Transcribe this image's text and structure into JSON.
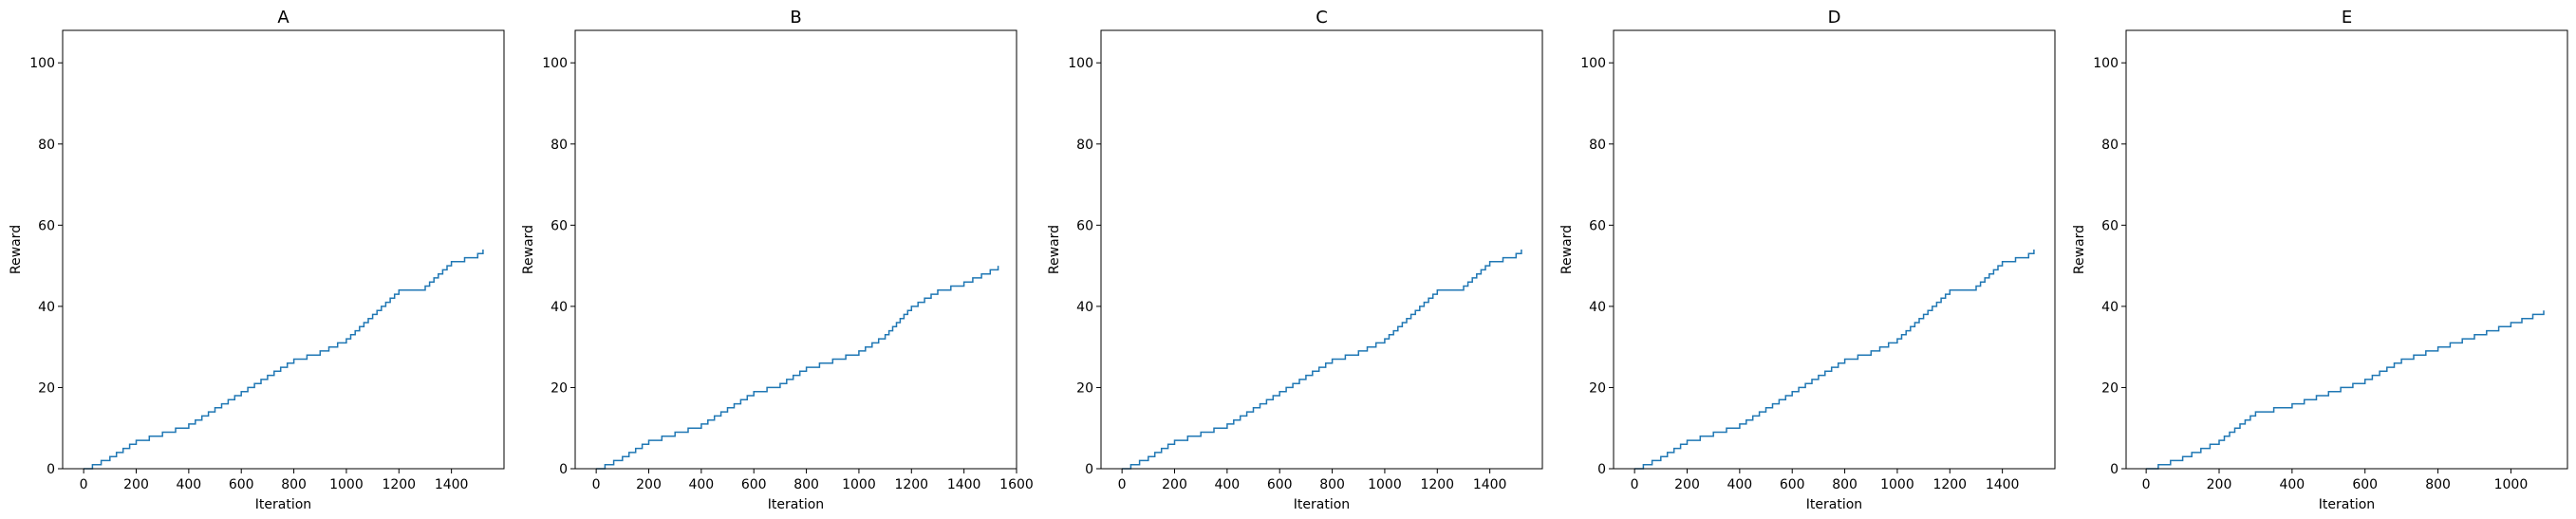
{
  "chart_data": [
    {
      "type": "line",
      "title": "A",
      "xlabel": "Iteration",
      "ylabel": "Reward",
      "xlim": [
        -80,
        1600
      ],
      "ylim": [
        0,
        108
      ],
      "xticks": [
        0,
        200,
        400,
        600,
        800,
        1000,
        1200,
        1400
      ],
      "yticks": [
        0,
        20,
        40,
        60,
        80,
        100
      ],
      "grid": false,
      "series": [
        {
          "x": [
            0,
            100,
            200,
            300,
            400,
            500,
            600,
            700,
            800,
            900,
            1000,
            1100,
            1200,
            1300,
            1400,
            1500,
            1520
          ],
          "y": [
            0,
            3,
            7,
            9,
            11,
            15,
            19,
            23,
            27,
            29,
            32,
            38,
            44,
            45,
            51,
            53,
            54
          ]
        }
      ]
    },
    {
      "type": "line",
      "title": "B",
      "xlabel": "Iteration",
      "ylabel": "Reward",
      "xlim": [
        -80,
        1600
      ],
      "ylim": [
        0,
        108
      ],
      "xticks": [
        0,
        200,
        400,
        600,
        800,
        1000,
        1200,
        1400,
        1600
      ],
      "yticks": [
        0,
        20,
        40,
        60,
        80,
        100
      ],
      "grid": false,
      "series": [
        {
          "x": [
            0,
            100,
            200,
            300,
            400,
            500,
            600,
            700,
            800,
            900,
            1000,
            1100,
            1200,
            1300,
            1400,
            1500,
            1530
          ],
          "y": [
            0,
            3,
            7,
            9,
            11,
            15,
            19,
            21,
            25,
            27,
            29,
            33,
            40,
            44,
            46,
            49,
            50
          ]
        }
      ]
    },
    {
      "type": "line",
      "title": "C",
      "xlabel": "Iteration",
      "ylabel": "Reward",
      "xlim": [
        -80,
        1600
      ],
      "ylim": [
        0,
        108
      ],
      "xticks": [
        0,
        200,
        400,
        600,
        800,
        1000,
        1200,
        1400
      ],
      "yticks": [
        0,
        20,
        40,
        60,
        80,
        100
      ],
      "grid": false,
      "series": [
        {
          "x": [
            0,
            100,
            200,
            300,
            400,
            500,
            600,
            700,
            800,
            900,
            1000,
            1100,
            1200,
            1300,
            1400,
            1500,
            1520
          ],
          "y": [
            0,
            3,
            7,
            9,
            11,
            15,
            19,
            23,
            27,
            29,
            32,
            38,
            44,
            45,
            51,
            53,
            54
          ]
        }
      ]
    },
    {
      "type": "line",
      "title": "D",
      "xlabel": "Iteration",
      "ylabel": "Reward",
      "xlim": [
        -80,
        1600
      ],
      "ylim": [
        0,
        108
      ],
      "xticks": [
        0,
        200,
        400,
        600,
        800,
        1000,
        1200,
        1400
      ],
      "yticks": [
        0,
        20,
        40,
        60,
        80,
        100
      ],
      "grid": false,
      "series": [
        {
          "x": [
            0,
            100,
            200,
            300,
            400,
            500,
            600,
            700,
            800,
            900,
            1000,
            1100,
            1200,
            1300,
            1400,
            1500,
            1520
          ],
          "y": [
            0,
            3,
            7,
            9,
            11,
            15,
            19,
            23,
            27,
            29,
            32,
            38,
            44,
            45,
            51,
            53,
            54
          ]
        }
      ]
    },
    {
      "type": "line",
      "title": "E",
      "xlabel": "Iteration",
      "ylabel": "Reward",
      "xlim": [
        -55,
        1155
      ],
      "ylim": [
        0,
        108
      ],
      "xticks": [
        0,
        200,
        400,
        600,
        800,
        1000
      ],
      "yticks": [
        0,
        20,
        40,
        60,
        80,
        100
      ],
      "grid": false,
      "series": [
        {
          "x": [
            0,
            100,
            200,
            300,
            400,
            500,
            600,
            700,
            800,
            900,
            1000,
            1090
          ],
          "y": [
            0,
            3,
            7,
            14,
            16,
            19,
            22,
            27,
            30,
            33,
            36,
            39
          ]
        }
      ]
    }
  ]
}
